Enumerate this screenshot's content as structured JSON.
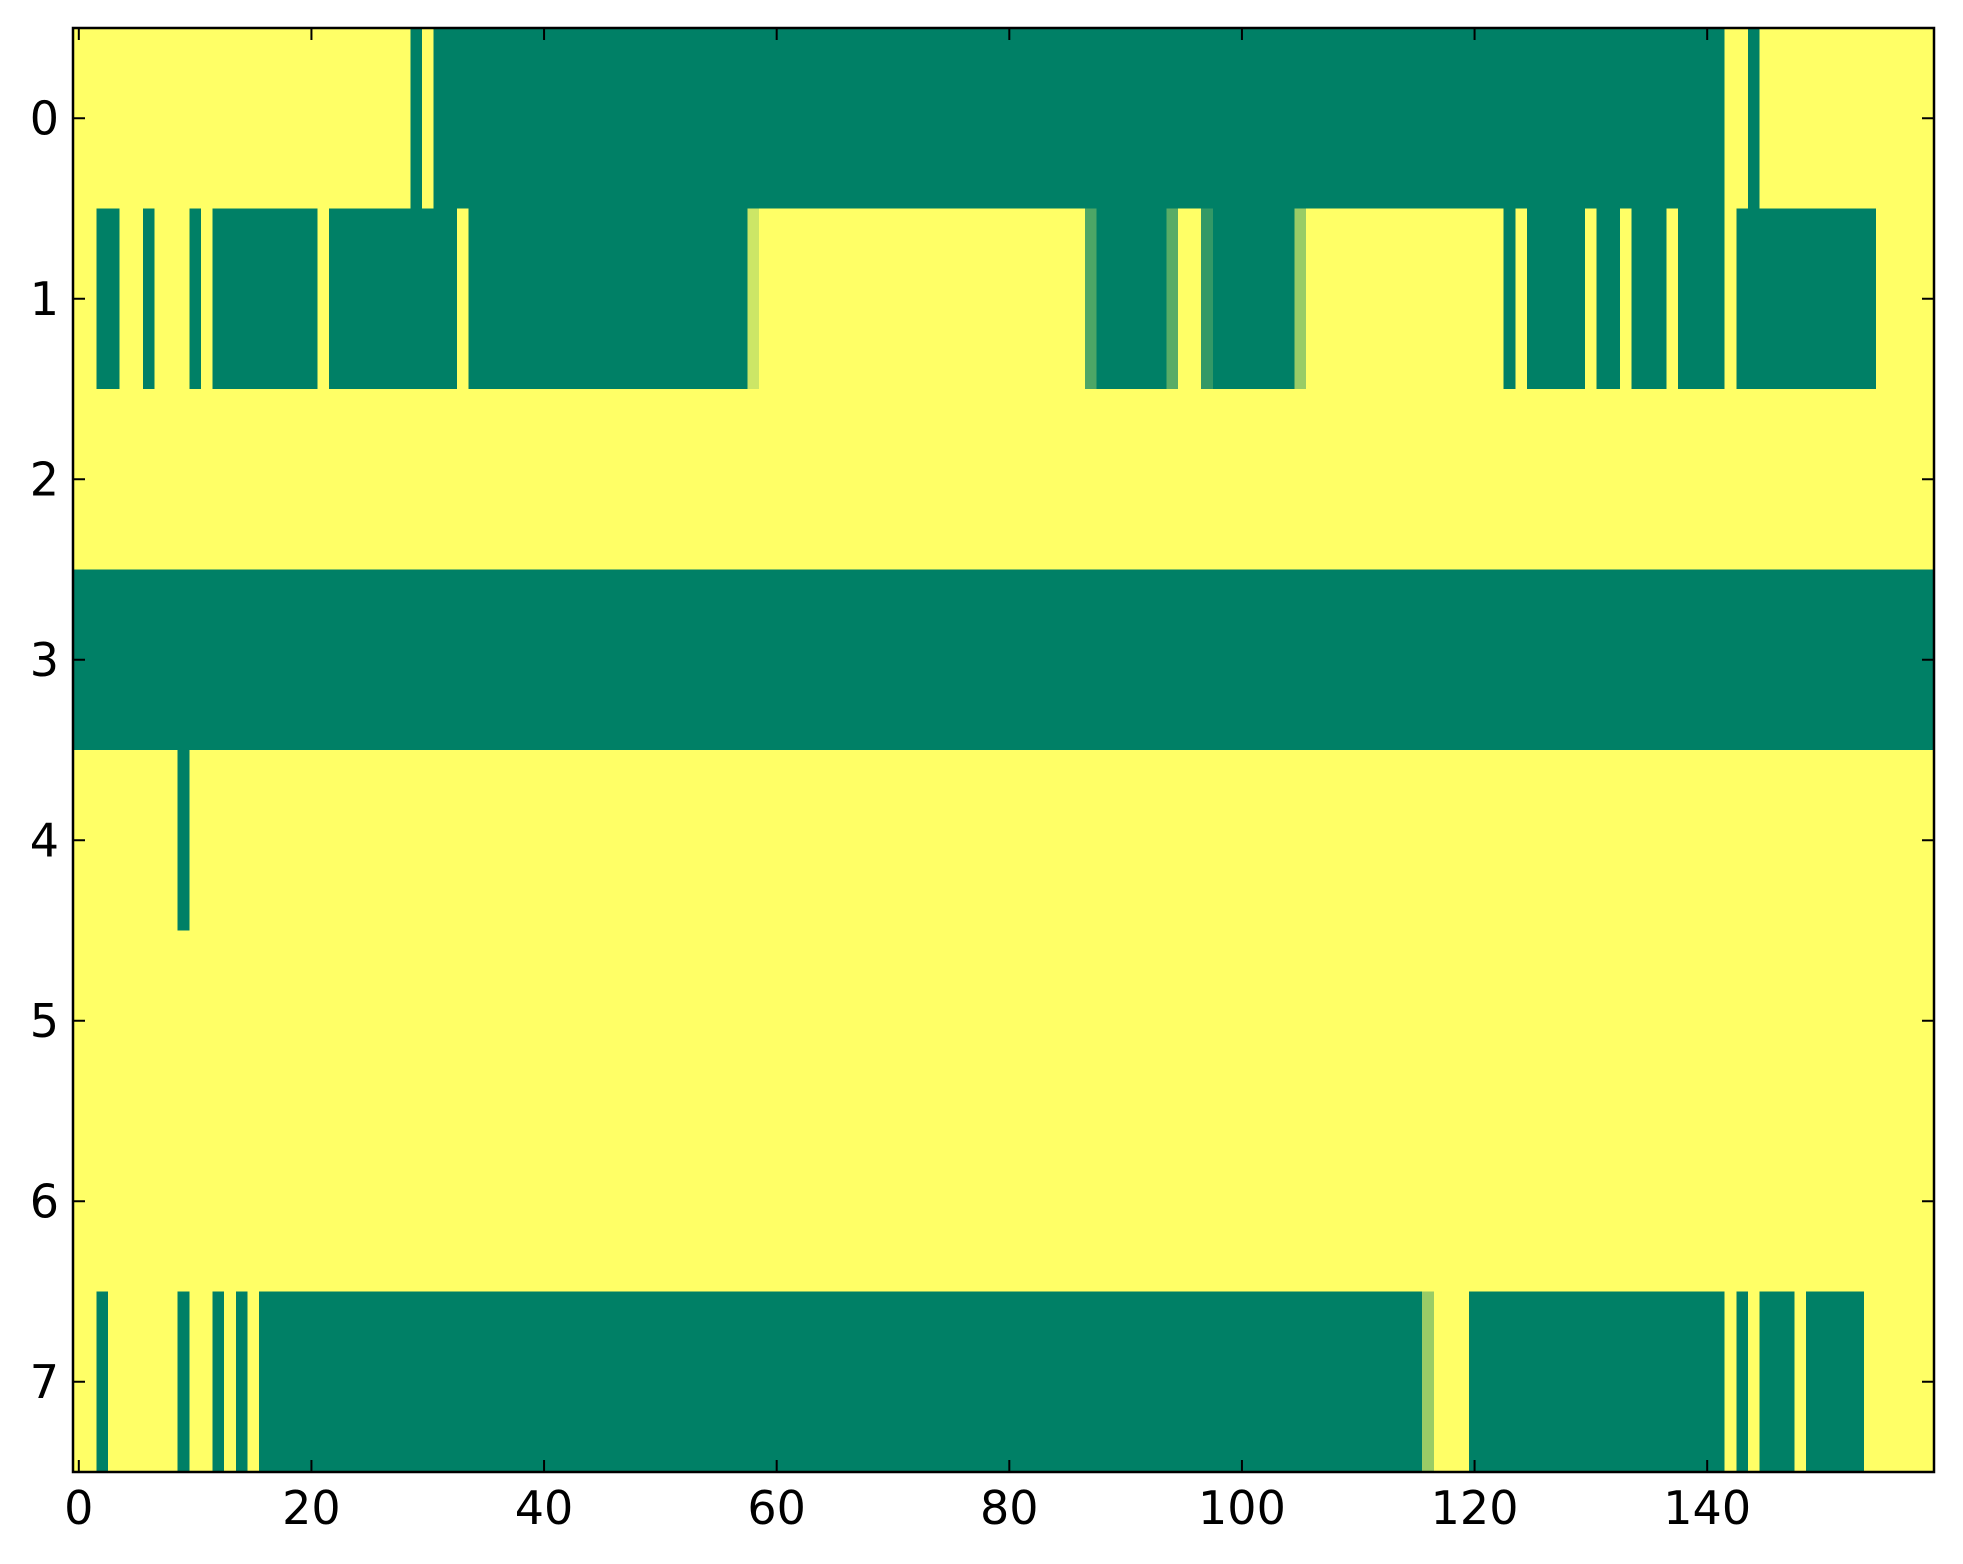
{
  "chart_data": {
    "type": "heatmap",
    "colormap": "summer",
    "zlim": [
      0,
      1
    ],
    "xlim": [
      -0.5,
      159.5
    ],
    "ylim": [
      7.5,
      -0.5
    ],
    "xticks": [
      0,
      20,
      40,
      60,
      80,
      100,
      120,
      140
    ],
    "yticks": [
      0,
      1,
      2,
      3,
      4,
      5,
      6,
      7
    ],
    "z": [
      [
        1,
        1,
        1,
        1,
        1,
        1,
        1,
        1,
        1,
        1,
        1,
        1,
        1,
        1,
        1,
        1,
        1,
        1,
        1,
        1,
        1,
        1,
        1,
        1,
        1,
        1,
        1,
        1,
        1,
        0,
        1,
        0,
        0,
        0,
        0,
        0,
        0,
        0,
        0,
        0,
        0,
        0,
        0,
        0,
        0,
        0,
        0,
        0,
        0,
        0,
        0,
        0,
        0,
        0,
        0,
        0,
        0,
        0,
        0,
        0,
        0,
        0,
        0,
        0,
        0,
        0,
        0,
        0,
        0,
        0,
        0,
        0,
        0,
        0,
        0,
        0,
        0,
        0,
        0,
        0,
        0,
        0,
        0,
        0,
        0,
        0,
        0,
        0,
        0,
        0,
        0,
        0,
        0,
        0,
        0,
        0,
        0,
        0,
        0,
        0,
        0,
        0,
        0,
        0,
        0,
        0,
        0,
        0,
        0,
        0,
        0,
        0,
        0,
        0,
        0,
        0,
        0,
        0,
        0,
        0,
        0,
        0,
        0,
        0,
        0,
        0,
        0,
        0,
        0,
        0,
        0,
        0,
        0,
        0,
        0,
        0,
        0,
        0,
        0,
        0,
        0,
        0,
        1,
        1,
        0,
        1,
        1,
        1,
        1,
        1,
        1,
        1,
        1,
        1,
        1,
        1,
        1,
        1,
        1,
        1
      ],
      [
        1,
        1,
        0,
        0,
        1,
        1,
        0,
        1,
        1,
        1,
        0,
        1,
        0,
        0,
        0,
        0,
        0,
        0,
        0,
        0,
        0,
        1,
        0,
        0,
        0,
        0,
        0,
        0,
        0,
        0,
        0,
        0,
        0,
        1,
        0,
        0,
        0,
        0,
        0,
        0,
        0,
        0,
        0,
        0,
        0,
        0,
        0,
        0,
        0,
        0,
        0,
        0,
        0,
        0,
        0,
        0,
        0,
        0,
        0.8,
        1,
        1,
        1,
        1,
        1,
        1,
        1,
        1,
        1,
        1,
        1,
        1,
        1,
        1,
        1,
        1,
        1,
        1,
        1,
        1,
        1,
        1,
        1,
        1,
        1,
        1,
        1,
        1,
        0.3,
        0,
        0,
        0,
        0,
        0,
        0,
        0.35,
        1,
        1,
        0.2,
        0,
        0,
        0,
        0,
        0,
        0,
        0,
        0.6,
        1,
        1,
        1,
        1,
        1,
        1,
        1,
        1,
        1,
        1,
        1,
        1,
        1,
        1,
        1,
        1,
        1,
        0,
        1,
        0,
        0,
        0,
        0,
        0,
        1,
        0,
        0,
        1,
        0,
        0,
        0,
        1,
        0,
        0,
        0,
        0,
        1,
        0,
        0,
        0,
        0,
        0,
        0,
        0,
        0,
        0,
        0,
        0,
        0,
        1,
        1,
        1,
        1,
        1
      ],
      [
        1,
        1,
        1,
        1,
        1,
        1,
        1,
        1,
        1,
        1,
        1,
        1,
        1,
        1,
        1,
        1,
        1,
        1,
        1,
        1,
        1,
        1,
        1,
        1,
        1,
        1,
        1,
        1,
        1,
        1,
        1,
        1,
        1,
        1,
        1,
        1,
        1,
        1,
        1,
        1,
        1,
        1,
        1,
        1,
        1,
        1,
        1,
        1,
        1,
        1,
        1,
        1,
        1,
        1,
        1,
        1,
        1,
        1,
        1,
        1,
        1,
        1,
        1,
        1,
        1,
        1,
        1,
        1,
        1,
        1,
        1,
        1,
        1,
        1,
        1,
        1,
        1,
        1,
        1,
        1,
        1,
        1,
        1,
        1,
        1,
        1,
        1,
        1,
        1,
        1,
        1,
        1,
        1,
        1,
        1,
        1,
        1,
        1,
        1,
        1,
        1,
        1,
        1,
        1,
        1,
        1,
        1,
        1,
        1,
        1,
        1,
        1,
        1,
        1,
        1,
        1,
        1,
        1,
        1,
        1,
        1,
        1,
        1,
        1,
        1,
        1,
        1,
        1,
        1,
        1,
        1,
        1,
        1,
        1,
        1,
        1,
        1,
        1,
        1,
        1,
        1,
        1,
        1,
        1,
        1,
        1,
        1,
        1,
        1,
        1,
        1,
        1,
        1,
        1,
        1,
        1,
        1,
        1,
        1,
        1
      ],
      [
        0,
        0,
        0,
        0,
        0,
        0,
        0,
        0,
        0,
        0,
        0,
        0,
        0,
        0,
        0,
        0,
        0,
        0,
        0,
        0,
        0,
        0,
        0,
        0,
        0,
        0,
        0,
        0,
        0,
        0,
        0,
        0,
        0,
        0,
        0,
        0,
        0,
        0,
        0,
        0,
        0,
        0,
        0,
        0,
        0,
        0,
        0,
        0,
        0,
        0,
        0,
        0,
        0,
        0,
        0,
        0,
        0,
        0,
        0,
        0,
        0,
        0,
        0,
        0,
        0,
        0,
        0,
        0,
        0,
        0,
        0,
        0,
        0,
        0,
        0,
        0,
        0,
        0,
        0,
        0,
        0,
        0,
        0,
        0,
        0,
        0,
        0,
        0,
        0,
        0,
        0,
        0,
        0,
        0,
        0,
        0,
        0,
        0,
        0,
        0,
        0,
        0,
        0,
        0,
        0,
        0,
        0,
        0,
        0,
        0,
        0,
        0,
        0,
        0,
        0,
        0,
        0,
        0,
        0,
        0,
        0,
        0,
        0,
        0,
        0,
        0,
        0,
        0,
        0,
        0,
        0,
        0,
        0,
        0,
        0,
        0,
        0,
        0,
        0,
        0,
        0,
        0,
        0,
        0,
        0,
        0,
        0,
        0,
        0,
        0,
        0,
        0,
        0,
        0,
        0,
        0,
        0,
        0,
        0,
        0
      ],
      [
        1,
        1,
        1,
        1,
        1,
        1,
        1,
        1,
        1,
        0,
        1,
        1,
        1,
        1,
        1,
        1,
        1,
        1,
        1,
        1,
        1,
        1,
        1,
        1,
        1,
        1,
        1,
        1,
        1,
        1,
        1,
        1,
        1,
        1,
        1,
        1,
        1,
        1,
        1,
        1,
        1,
        1,
        1,
        1,
        1,
        1,
        1,
        1,
        1,
        1,
        1,
        1,
        1,
        1,
        1,
        1,
        1,
        1,
        1,
        1,
        1,
        1,
        1,
        1,
        1,
        1,
        1,
        1,
        1,
        1,
        1,
        1,
        1,
        1,
        1,
        1,
        1,
        1,
        1,
        1,
        1,
        1,
        1,
        1,
        1,
        1,
        1,
        1,
        1,
        1,
        1,
        1,
        1,
        1,
        1,
        1,
        1,
        1,
        1,
        1,
        1,
        1,
        1,
        1,
        1,
        1,
        1,
        1,
        1,
        1,
        1,
        1,
        1,
        1,
        1,
        1,
        1,
        1,
        1,
        1,
        1,
        1,
        1,
        1,
        1,
        1,
        1,
        1,
        1,
        1,
        1,
        1,
        1,
        1,
        1,
        1,
        1,
        1,
        1,
        1,
        1,
        1,
        1,
        1,
        1,
        1,
        1,
        1,
        1,
        1,
        1,
        1,
        1,
        1,
        1,
        1,
        1,
        1,
        1,
        1
      ],
      [
        1,
        1,
        1,
        1,
        1,
        1,
        1,
        1,
        1,
        1,
        1,
        1,
        1,
        1,
        1,
        1,
        1,
        1,
        1,
        1,
        1,
        1,
        1,
        1,
        1,
        1,
        1,
        1,
        1,
        1,
        1,
        1,
        1,
        1,
        1,
        1,
        1,
        1,
        1,
        1,
        1,
        1,
        1,
        1,
        1,
        1,
        1,
        1,
        1,
        1,
        1,
        1,
        1,
        1,
        1,
        1,
        1,
        1,
        1,
        1,
        1,
        1,
        1,
        1,
        1,
        1,
        1,
        1,
        1,
        1,
        1,
        1,
        1,
        1,
        1,
        1,
        1,
        1,
        1,
        1,
        1,
        1,
        1,
        1,
        1,
        1,
        1,
        1,
        1,
        1,
        1,
        1,
        1,
        1,
        1,
        1,
        1,
        1,
        1,
        1,
        1,
        1,
        1,
        1,
        1,
        1,
        1,
        1,
        1,
        1,
        1,
        1,
        1,
        1,
        1,
        1,
        1,
        1,
        1,
        1,
        1,
        1,
        1,
        1,
        1,
        1,
        1,
        1,
        1,
        1,
        1,
        1,
        1,
        1,
        1,
        1,
        1,
        1,
        1,
        1,
        1,
        1,
        1,
        1,
        1,
        1,
        1,
        1,
        1,
        1,
        1,
        1,
        1,
        1,
        1,
        1,
        1,
        1,
        1,
        1
      ],
      [
        1,
        1,
        1,
        1,
        1,
        1,
        1,
        1,
        1,
        1,
        1,
        1,
        1,
        1,
        1,
        1,
        1,
        1,
        1,
        1,
        1,
        1,
        1,
        1,
        1,
        1,
        1,
        1,
        1,
        1,
        1,
        1,
        1,
        1,
        1,
        1,
        1,
        1,
        1,
        1,
        1,
        1,
        1,
        1,
        1,
        1,
        1,
        1,
        1,
        1,
        1,
        1,
        1,
        1,
        1,
        1,
        1,
        1,
        1,
        1,
        1,
        1,
        1,
        1,
        1,
        1,
        1,
        1,
        1,
        1,
        1,
        1,
        1,
        1,
        1,
        1,
        1,
        1,
        1,
        1,
        1,
        1,
        1,
        1,
        1,
        1,
        1,
        1,
        1,
        1,
        1,
        1,
        1,
        1,
        1,
        1,
        1,
        1,
        1,
        1,
        1,
        1,
        1,
        1,
        1,
        1,
        1,
        1,
        1,
        1,
        1,
        1,
        1,
        1,
        1,
        1,
        1,
        1,
        1,
        1,
        1,
        1,
        1,
        1,
        1,
        1,
        1,
        1,
        1,
        1,
        1,
        1,
        1,
        1,
        1,
        1,
        1,
        1,
        1,
        1,
        1,
        1,
        1,
        1,
        1,
        1,
        1,
        1,
        1,
        1,
        1,
        1,
        1,
        1,
        1,
        1,
        1,
        1,
        1,
        1
      ],
      [
        1,
        1,
        0,
        1,
        1,
        1,
        1,
        1,
        1,
        0,
        1,
        1,
        0,
        1,
        0,
        1,
        0,
        0,
        0,
        0,
        0,
        0,
        0,
        0,
        0,
        0,
        0,
        0,
        0,
        0,
        0,
        0,
        0,
        0,
        0,
        0,
        0,
        0,
        0,
        0,
        0,
        0,
        0,
        0,
        0,
        0,
        0,
        0,
        0,
        0,
        0,
        0,
        0,
        0,
        0,
        0,
        0,
        0,
        0,
        0,
        0,
        0,
        0,
        0,
        0,
        0,
        0,
        0,
        0,
        0,
        0,
        0,
        0,
        0,
        0,
        0,
        0,
        0,
        0,
        0,
        0,
        0,
        0,
        0,
        0,
        0,
        0,
        0,
        0,
        0,
        0,
        0,
        0,
        0,
        0,
        0,
        0,
        0,
        0,
        0,
        0,
        0,
        0,
        0,
        0,
        0,
        0,
        0,
        0,
        0,
        0,
        0,
        0,
        0,
        0,
        0,
        0.6,
        1,
        1,
        1,
        0,
        0,
        0,
        0,
        0,
        0,
        0,
        0,
        0,
        0,
        0,
        0,
        0,
        0,
        0,
        0,
        0,
        0,
        0,
        0,
        0,
        0,
        1,
        0,
        1,
        0,
        0,
        0,
        1,
        0,
        0,
        0,
        0,
        0,
        1,
        1,
        1,
        1,
        1,
        1
      ]
    ]
  }
}
